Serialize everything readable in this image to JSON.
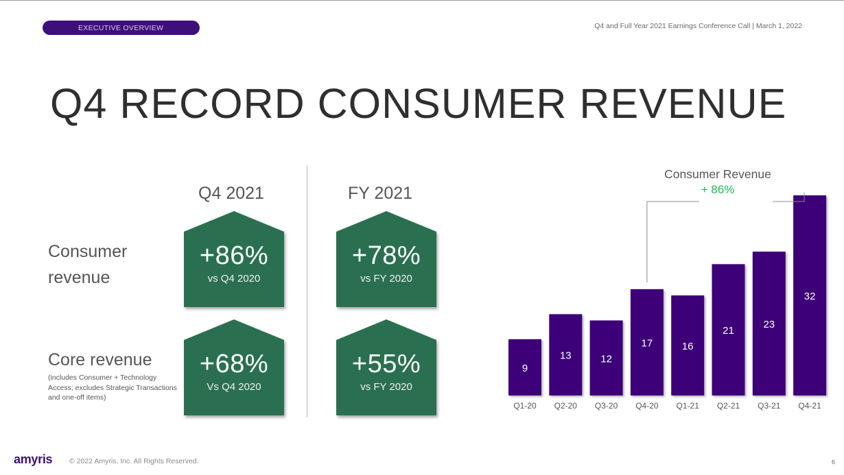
{
  "header": {
    "section_pill": "EXECUTIVE OVERVIEW",
    "event": "Q4 and Full Year 2021 Earnings Conference Call | March 1, 2022"
  },
  "title": "Q4 RECORD CONSUMER REVENUE",
  "metrics": {
    "columns": [
      "Q4 2021",
      "FY 2021"
    ],
    "consumer": {
      "label_line1": "Consumer",
      "label_line2": "revenue",
      "q4": {
        "pct": "+86%",
        "vs": "vs Q4 2020"
      },
      "fy": {
        "pct": "+78%",
        "vs": "vs FY 2020"
      }
    },
    "core": {
      "label": "Core revenue",
      "note": "(includes Consumer + Technology Access; excludes Strategic Transactions and one-off items)",
      "q4": {
        "pct": "+68%",
        "vs": "Vs Q4 2020"
      },
      "fy": {
        "pct": "+55%",
        "vs": "vs FY 2020"
      }
    },
    "box_color": "#2a7050"
  },
  "chart_data": {
    "type": "bar",
    "title": "Consumer Revenue",
    "annotation": "+ 86%",
    "annotation_from": "Q4-20",
    "annotation_to": "Q4-21",
    "categories": [
      "Q1-20",
      "Q2-20",
      "Q3-20",
      "Q4-20",
      "Q1-21",
      "Q2-21",
      "Q3-21",
      "Q4-21"
    ],
    "values": [
      9,
      13,
      12,
      17,
      16,
      21,
      23,
      32
    ],
    "ylim": [
      0,
      32
    ],
    "bar_color": "#3d0079",
    "annotation_color": "#1db954",
    "grid": false
  },
  "footer": {
    "logo": "amyris",
    "copyright": "© 2022 Amyris, Inc. All Rights Reserved.",
    "page": "6"
  }
}
